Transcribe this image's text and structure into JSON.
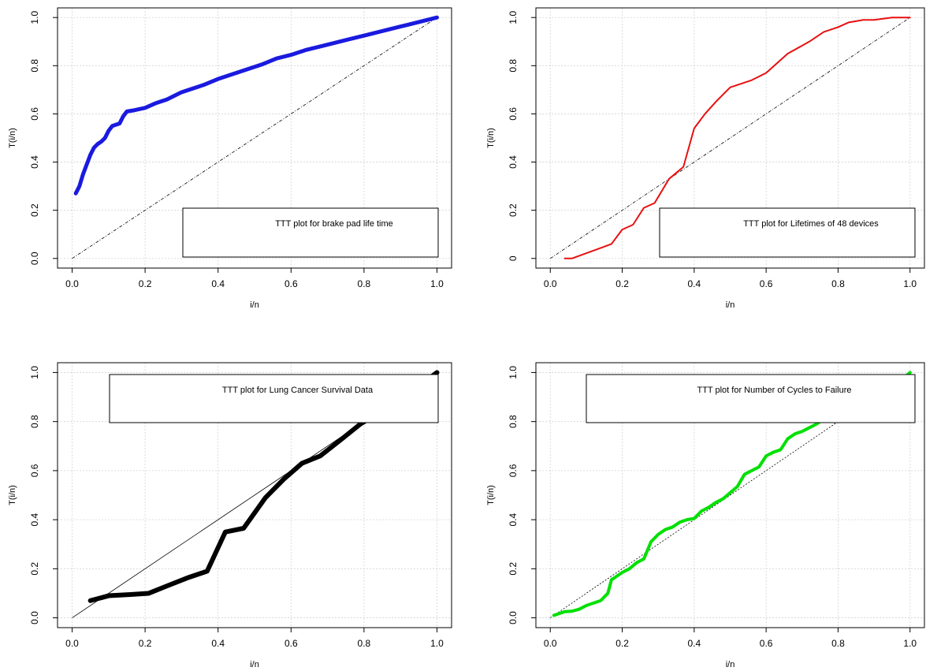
{
  "chart_data": [
    {
      "type": "line",
      "title": "",
      "xlabel": "i/n",
      "ylabel": "T(i/n)",
      "xlim": [
        0.0,
        1.0
      ],
      "ylim": [
        0.0,
        1.0
      ],
      "xticks": [
        "0.0",
        "0.2",
        "0.4",
        "0.6",
        "0.8",
        "1.0"
      ],
      "yticks": [
        "0.0",
        "0.2",
        "0.4",
        "0.6",
        "0.8",
        "1.0"
      ],
      "grid": true,
      "legend": {
        "text": "TTT plot for brake pad life time",
        "placement": "bottom-right"
      },
      "reference_line": "diagonal",
      "series": [
        {
          "color": "#1a1adf",
          "x": [
            0.01,
            0.02,
            0.03,
            0.04,
            0.05,
            0.06,
            0.07,
            0.08,
            0.09,
            0.1,
            0.11,
            0.13,
            0.14,
            0.15,
            0.17,
            0.2,
            0.23,
            0.26,
            0.28,
            0.3,
            0.33,
            0.36,
            0.4,
            0.44,
            0.48,
            0.52,
            0.56,
            0.6,
            0.64,
            0.68,
            0.72,
            0.76,
            0.8,
            0.84,
            0.88,
            0.92,
            0.96,
            1.0
          ],
          "y": [
            0.27,
            0.3,
            0.35,
            0.39,
            0.43,
            0.46,
            0.475,
            0.485,
            0.5,
            0.53,
            0.55,
            0.56,
            0.59,
            0.61,
            0.615,
            0.625,
            0.645,
            0.66,
            0.675,
            0.69,
            0.705,
            0.72,
            0.745,
            0.765,
            0.785,
            0.805,
            0.83,
            0.845,
            0.865,
            0.88,
            0.895,
            0.91,
            0.925,
            0.94,
            0.955,
            0.97,
            0.985,
            1.0
          ]
        }
      ]
    },
    {
      "type": "line",
      "title": "",
      "xlabel": "i/n",
      "ylabel": "T(i/n)",
      "xlim": [
        0.0,
        1.0
      ],
      "ylim": [
        0.0,
        1.0
      ],
      "xticks": [
        "0.0",
        "0.2",
        "0.4",
        "0.6",
        "0.8",
        "1.0"
      ],
      "yticks": [
        "0",
        "0.2",
        "0.4",
        "0.6",
        "0.8",
        "1.0"
      ],
      "grid": true,
      "legend": {
        "text": "TTT plot for Lifetimes of 48 devices",
        "placement": "bottom-right"
      },
      "reference_line": "diagonal",
      "series": [
        {
          "color": "#e81010",
          "x": [
            0.04,
            0.06,
            0.17,
            0.2,
            0.23,
            0.26,
            0.29,
            0.33,
            0.37,
            0.4,
            0.43,
            0.46,
            0.5,
            0.56,
            0.6,
            0.66,
            0.72,
            0.76,
            0.8,
            0.83,
            0.87,
            0.9,
            0.95,
            1.0
          ],
          "y": [
            0.0,
            0.0,
            0.06,
            0.12,
            0.14,
            0.21,
            0.23,
            0.33,
            0.38,
            0.54,
            0.6,
            0.65,
            0.71,
            0.74,
            0.77,
            0.85,
            0.9,
            0.94,
            0.96,
            0.98,
            0.99,
            0.99,
            1.0,
            1.0
          ]
        }
      ]
    },
    {
      "type": "line",
      "title": "",
      "xlabel": "i/n",
      "ylabel": "T(i/n)",
      "xlim": [
        0.0,
        1.0
      ],
      "ylim": [
        0.0,
        1.0
      ],
      "xticks": [
        "0.0",
        "0.2",
        "0.4",
        "0.6",
        "0.8",
        "1.0"
      ],
      "yticks": [
        "0.0",
        "0.2",
        "0.4",
        "0.6",
        "0.8",
        "1.0"
      ],
      "grid": true,
      "legend": {
        "text": "TTT plot for Lung Cancer Survival Data",
        "placement": "top"
      },
      "reference_line": "diagonal",
      "series": [
        {
          "color": "#000000",
          "x": [
            0.05,
            0.1,
            0.16,
            0.21,
            0.26,
            0.32,
            0.37,
            0.42,
            0.47,
            0.53,
            0.58,
            0.63,
            0.68,
            0.74,
            0.79,
            0.84,
            0.89,
            0.95,
            1.0
          ],
          "y": [
            0.07,
            0.09,
            0.095,
            0.1,
            0.13,
            0.165,
            0.19,
            0.35,
            0.365,
            0.49,
            0.565,
            0.63,
            0.66,
            0.73,
            0.79,
            0.835,
            0.905,
            0.945,
            1.0
          ]
        }
      ]
    },
    {
      "type": "line",
      "title": "",
      "xlabel": "i/n",
      "ylabel": "T(i/n)",
      "xlim": [
        0.0,
        1.0
      ],
      "ylim": [
        0.0,
        1.0
      ],
      "xticks": [
        "0.0",
        "0.2",
        "0.4",
        "0.6",
        "0.8",
        "1.0"
      ],
      "yticks": [
        "0.0",
        "0.2",
        "0.4",
        "0.6",
        "0.8",
        "1.0"
      ],
      "grid": true,
      "legend": {
        "text": "TTT plot for Number of Cycles to Failure",
        "placement": "top"
      },
      "reference_line": "diagonal",
      "series": [
        {
          "color": "#00e000",
          "x": [
            0.01,
            0.02,
            0.04,
            0.06,
            0.08,
            0.1,
            0.12,
            0.14,
            0.16,
            0.17,
            0.18,
            0.2,
            0.22,
            0.24,
            0.26,
            0.28,
            0.3,
            0.32,
            0.34,
            0.36,
            0.38,
            0.4,
            0.42,
            0.44,
            0.46,
            0.48,
            0.5,
            0.52,
            0.54,
            0.56,
            0.58,
            0.6,
            0.62,
            0.64,
            0.66,
            0.68,
            0.7,
            0.72,
            0.74,
            0.76,
            0.78,
            0.8,
            0.82,
            0.84,
            0.86,
            0.88,
            0.9,
            0.92,
            0.94,
            0.96,
            0.98,
            1.0
          ],
          "y": [
            0.01,
            0.015,
            0.025,
            0.027,
            0.035,
            0.05,
            0.06,
            0.07,
            0.1,
            0.155,
            0.165,
            0.185,
            0.2,
            0.225,
            0.24,
            0.31,
            0.34,
            0.36,
            0.37,
            0.39,
            0.4,
            0.405,
            0.435,
            0.45,
            0.47,
            0.485,
            0.51,
            0.535,
            0.585,
            0.6,
            0.615,
            0.66,
            0.675,
            0.685,
            0.73,
            0.75,
            0.76,
            0.775,
            0.79,
            0.81,
            0.86,
            0.87,
            0.875,
            0.885,
            0.895,
            0.905,
            0.92,
            0.93,
            0.95,
            0.96,
            0.975,
            1.0
          ]
        }
      ]
    }
  ]
}
